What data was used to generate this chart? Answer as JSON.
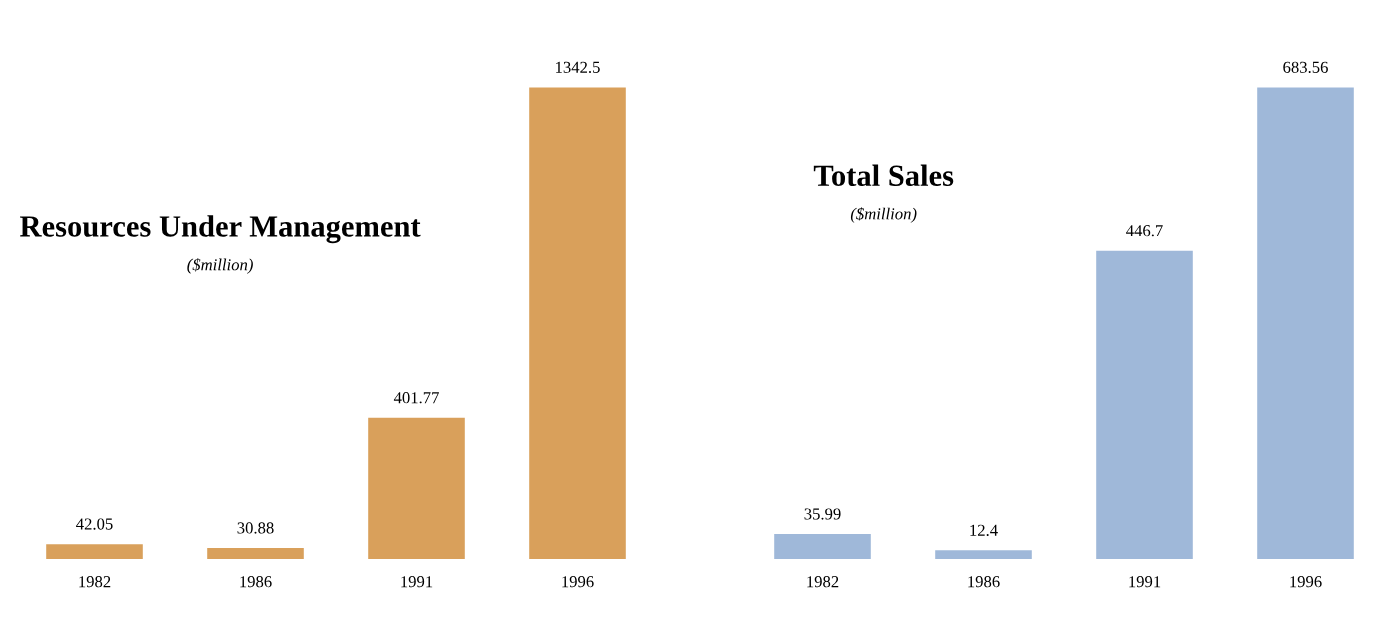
{
  "chart_data": [
    {
      "type": "bar",
      "title": "Resources Under Management",
      "subtitle": "($million)",
      "categories": [
        "1982",
        "1986",
        "1991",
        "1996"
      ],
      "values": [
        42.05,
        30.88,
        401.77,
        1342.5
      ],
      "color": "#d9a05b",
      "data_labels": true
    },
    {
      "type": "bar",
      "title": "Total Sales",
      "subtitle": "($million)",
      "categories": [
        "1982",
        "1986",
        "1991",
        "1996"
      ],
      "values": [
        35.99,
        12.4,
        446.7,
        683.56
      ],
      "color": "#9fb8d9",
      "data_labels": true
    }
  ]
}
